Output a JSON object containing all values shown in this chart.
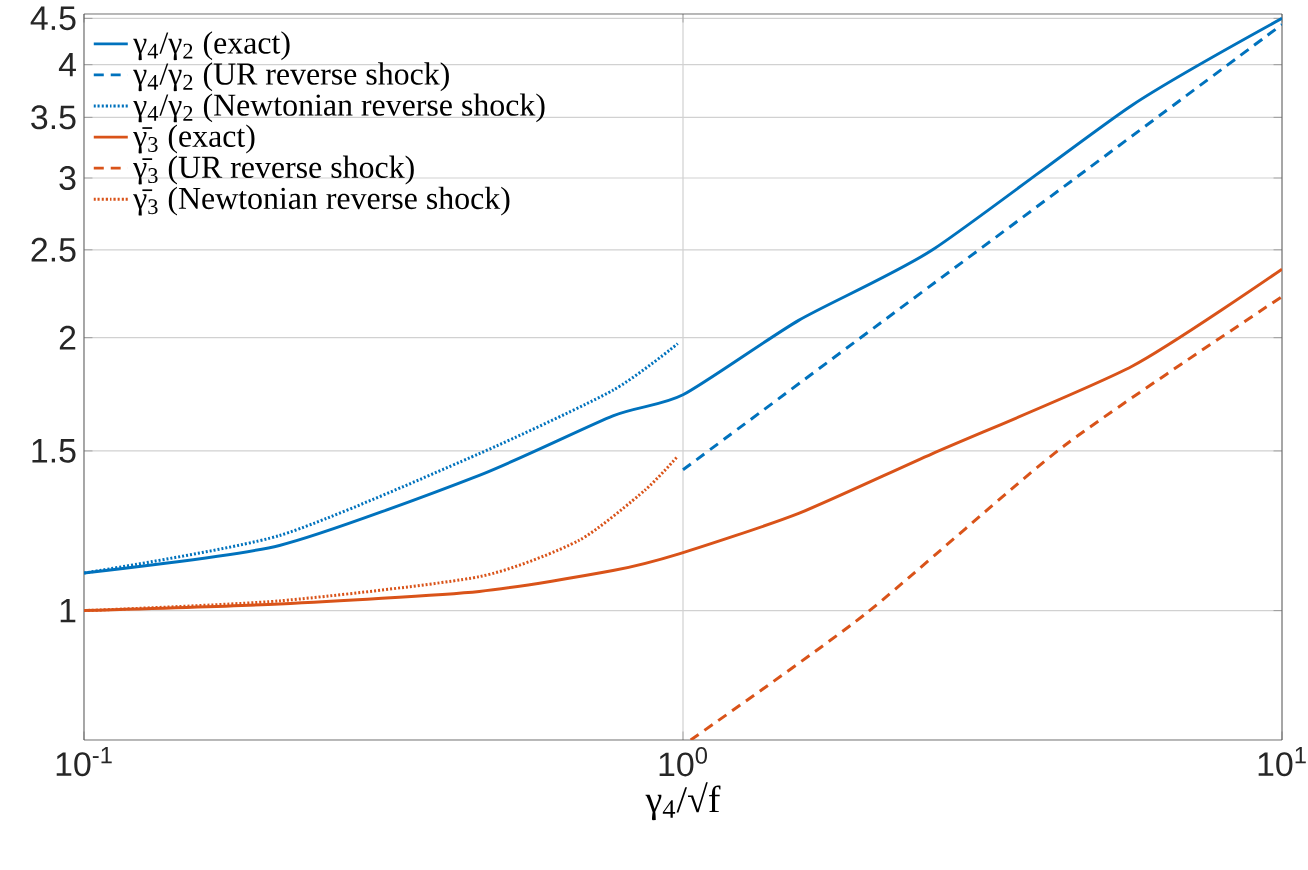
{
  "chart_data": {
    "type": "line",
    "xlabel": "γ$_{4}$/√f",
    "log": "xy",
    "xlim": [
      0.1,
      10
    ],
    "ylim": [
      0.72,
      4.55
    ],
    "xticks": [
      {
        "value": 0.1,
        "label": "10$^{-1}$"
      },
      {
        "value": 1,
        "label": "10$^{0}$"
      },
      {
        "value": 10,
        "label": "10$^{1}$"
      }
    ],
    "yticks": [
      1,
      1.5,
      2,
      2.5,
      3,
      3.5,
      4,
      4.5
    ],
    "grid": true,
    "legend": "top left",
    "series": [
      {
        "name": "γ$_{4}$/γ$_{2}$ (exact)",
        "color": "#0072bd",
        "line_style": "solid",
        "x": [
          0.1,
          0.212,
          0.457,
          0.764,
          1,
          1.56,
          2.61,
          5.62,
          10
        ],
        "values": [
          1.1,
          1.18,
          1.41,
          1.64,
          1.73,
          2.09,
          2.5,
          3.61,
          4.5
        ]
      },
      {
        "name": "γ$_{4}$/γ$_{2}$ (UR reverse shock)",
        "color": "#0072bd",
        "line_style": "dashed",
        "x": [
          1,
          10
        ],
        "values": [
          1.43,
          4.43
        ]
      },
      {
        "name": "γ$_{4}$/γ$_{2}$ (Newtonian reverse shock)",
        "color": "#0072bd",
        "line_style": "dotted",
        "x": [
          0.1,
          0.212,
          0.457,
          0.764,
          0.98
        ],
        "values": [
          1.1,
          1.21,
          1.49,
          1.75,
          1.97
        ]
      },
      {
        "name": "γ̄$_{3}$ (exact)",
        "color": "#d95319",
        "line_style": "solid",
        "x": [
          0.1,
          0.212,
          0.457,
          0.764,
          0.985,
          1.56,
          2.61,
          5.62,
          10
        ],
        "values": [
          1.0,
          1.017,
          1.05,
          1.107,
          1.155,
          1.28,
          1.49,
          1.86,
          2.38
        ]
      },
      {
        "name": "γ̄$_{3}$ (UR reverse shock)",
        "color": "#d95319",
        "line_style": "dashed",
        "x": [
          1.03,
          2.01,
          4.33,
          10
        ],
        "values": [
          0.72,
          0.99,
          1.52,
          2.22
        ]
      },
      {
        "name": "γ̄$_{3}$ (Newtonian reverse shock)",
        "color": "#d95319",
        "line_style": "dotted",
        "x": [
          0.1,
          0.212,
          0.457,
          0.67,
          0.864,
          0.98
        ],
        "values": [
          1.0,
          1.025,
          1.09,
          1.195,
          1.358,
          1.48
        ]
      }
    ]
  }
}
